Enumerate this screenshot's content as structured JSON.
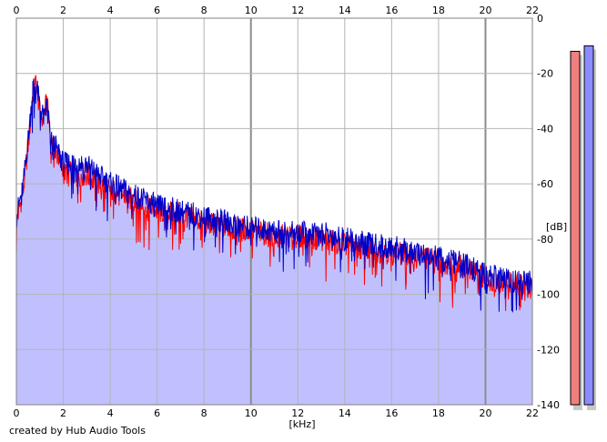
{
  "footer": {
    "credit": "created by Hub Audio Tools"
  },
  "colors": {
    "fill": "#c0c0ff",
    "grid": "#b4b4b4",
    "grid_major": "#8c8c8c",
    "channel_left": "#ff0000",
    "channel_right": "#0000c8",
    "meter_left": "#f08080",
    "meter_right": "#8c8cff",
    "meter_shadow": "#c8c8c8"
  },
  "chart_data": {
    "type": "area",
    "xlabel": "[kHz]",
    "ylabel": "[dB]",
    "xlim": [
      0,
      22
    ],
    "ylim": [
      -140,
      0
    ],
    "x_ticks": [
      0,
      2,
      4,
      6,
      8,
      10,
      12,
      14,
      16,
      18,
      20,
      22
    ],
    "x_major_ticks": [
      10,
      20
    ],
    "y_ticks": [
      0,
      -20,
      -40,
      -60,
      -80,
      -100,
      -120,
      -140
    ],
    "grid": true,
    "x": [
      0,
      0.3,
      0.55,
      0.7,
      0.85,
      1.0,
      1.2,
      1.3,
      1.5,
      1.8,
      2.0,
      2.5,
      3.0,
      3.5,
      4.0,
      5.0,
      6.0,
      7.0,
      8.0,
      9.0,
      10.0,
      11.0,
      12.0,
      13.0,
      14.0,
      15.0,
      16.0,
      17.0,
      18.0,
      19.0,
      20.0,
      21.0,
      22.0
    ],
    "series": [
      {
        "values": [
          -74,
          -62,
          -42,
          -27,
          -23,
          -34,
          -34,
          -30,
          -47,
          -50,
          -56,
          -56,
          -57,
          -60,
          -62,
          -66,
          -70,
          -71,
          -74,
          -76,
          -77,
          -79,
          -79,
          -80,
          -82,
          -84,
          -85,
          -86,
          -88,
          -90,
          -94,
          -96,
          -97
        ]
      },
      {
        "values": [
          -72,
          -60,
          -40,
          -25,
          -24,
          -32,
          -37,
          -31,
          -45,
          -48,
          -53,
          -52,
          -53,
          -57,
          -60,
          -64,
          -68,
          -70,
          -72,
          -74,
          -76,
          -77,
          -78,
          -78,
          -80,
          -82,
          -83,
          -85,
          -87,
          -89,
          -93,
          -95,
          -96
        ]
      }
    ],
    "level_meters": [
      {
        "value": -12
      },
      {
        "value": -10
      }
    ]
  }
}
